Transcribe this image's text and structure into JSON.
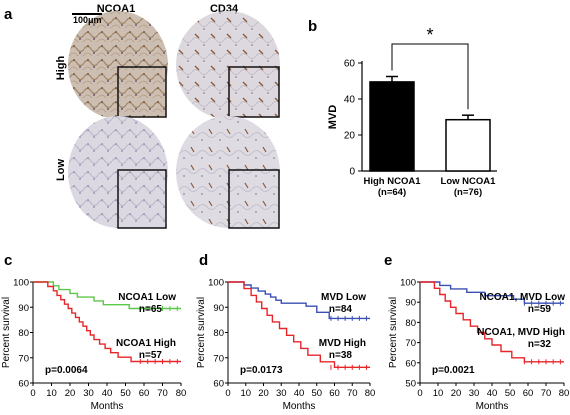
{
  "panels": {
    "a": "a",
    "b": "b",
    "c": "c",
    "d": "d",
    "e": "e"
  },
  "ihc": {
    "col_labels": [
      "NCOA1",
      "CD34"
    ],
    "row_labels": [
      "High",
      "Low"
    ],
    "scale_bar": "100μm"
  },
  "chart_data": [
    {
      "id": "b",
      "type": "bar",
      "categories": [
        "High NCOA1\n(n=64)",
        "Low NCOA1\n(n=76)"
      ],
      "values": [
        49.5,
        28.5
      ],
      "errors": [
        3,
        2.5
      ],
      "bar_colors": [
        "#000000",
        "#ffffff"
      ],
      "ylabel": "MVD",
      "ylim": [
        0,
        60
      ],
      "yticks": [
        0,
        20,
        40,
        60
      ],
      "annotation": "*"
    },
    {
      "id": "c",
      "type": "line",
      "xlabel": "Months",
      "ylabel": "Percent survival",
      "xlim": [
        0,
        80
      ],
      "ylim": [
        60,
        100
      ],
      "xticks": [
        0,
        10,
        20,
        30,
        40,
        50,
        60,
        70,
        80
      ],
      "yticks": [
        60,
        70,
        80,
        90,
        100
      ],
      "pvalue": "p=0.0064",
      "series": [
        {
          "name": "NCOA1 Low",
          "n": "n=65",
          "color": "#5cc84a",
          "steps": [
            [
              0,
              100
            ],
            [
              11,
              100
            ],
            [
              11,
              98.5
            ],
            [
              14,
              98.5
            ],
            [
              14,
              97
            ],
            [
              20,
              97
            ],
            [
              20,
              95.5
            ],
            [
              24,
              95.5
            ],
            [
              24,
              94
            ],
            [
              33,
              94
            ],
            [
              33,
              92.5
            ],
            [
              38,
              92.5
            ],
            [
              38,
              91
            ],
            [
              52,
              91
            ],
            [
              52,
              89.5
            ],
            [
              80,
              89.5
            ]
          ]
        },
        {
          "name": "NCOA1 High",
          "n": "n=57",
          "color": "#e8262a",
          "steps": [
            [
              0,
              100
            ],
            [
              8,
              100
            ],
            [
              8,
              98.2
            ],
            [
              11,
              98.2
            ],
            [
              11,
              96.5
            ],
            [
              13,
              96.5
            ],
            [
              13,
              94.7
            ],
            [
              15,
              94.7
            ],
            [
              15,
              93
            ],
            [
              17,
              93
            ],
            [
              17,
              91.2
            ],
            [
              19,
              91.2
            ],
            [
              19,
              89.5
            ],
            [
              21,
              89.5
            ],
            [
              21,
              87.7
            ],
            [
              23,
              87.7
            ],
            [
              23,
              86
            ],
            [
              25,
              86
            ],
            [
              25,
              84.2
            ],
            [
              27,
              84.2
            ],
            [
              27,
              82.5
            ],
            [
              29,
              82.5
            ],
            [
              29,
              80.7
            ],
            [
              31,
              80.7
            ],
            [
              31,
              79
            ],
            [
              33,
              79
            ],
            [
              33,
              77.2
            ],
            [
              36,
              77.2
            ],
            [
              36,
              75.4
            ],
            [
              39,
              75.4
            ],
            [
              39,
              73.7
            ],
            [
              42,
              73.7
            ],
            [
              42,
              72
            ],
            [
              46,
              72
            ],
            [
              46,
              70.2
            ],
            [
              53,
              70.2
            ],
            [
              53,
              68.5
            ],
            [
              80,
              68.5
            ]
          ]
        }
      ]
    },
    {
      "id": "d",
      "type": "line",
      "xlabel": "Months",
      "ylabel": "Percent survival",
      "xlim": [
        0,
        80
      ],
      "ylim": [
        60,
        100
      ],
      "xticks": [
        0,
        10,
        20,
        30,
        40,
        50,
        60,
        70,
        80
      ],
      "yticks": [
        60,
        70,
        80,
        90,
        100
      ],
      "pvalue": "p=0.0173",
      "series": [
        {
          "name": "MVD Low",
          "n": "n=84",
          "color": "#3a4fb3",
          "steps": [
            [
              0,
              100
            ],
            [
              9,
              100
            ],
            [
              9,
              98.8
            ],
            [
              13,
              98.8
            ],
            [
              13,
              97.6
            ],
            [
              17,
              97.6
            ],
            [
              17,
              96.4
            ],
            [
              21,
              96.4
            ],
            [
              21,
              95.2
            ],
            [
              24,
              95.2
            ],
            [
              24,
              94
            ],
            [
              27,
              94
            ],
            [
              27,
              92.8
            ],
            [
              30,
              92.8
            ],
            [
              30,
              91.6
            ],
            [
              44,
              91.6
            ],
            [
              44,
              90.4
            ],
            [
              50,
              90.4
            ],
            [
              50,
              88
            ],
            [
              57,
              88
            ],
            [
              57,
              85.6
            ],
            [
              80,
              85.6
            ]
          ]
        },
        {
          "name": "MVD High",
          "n": "n=38",
          "color": "#e8262a",
          "steps": [
            [
              0,
              100
            ],
            [
              9,
              100
            ],
            [
              9,
              97.4
            ],
            [
              13,
              97.4
            ],
            [
              13,
              94.7
            ],
            [
              16,
              94.7
            ],
            [
              16,
              92.1
            ],
            [
              19,
              92.1
            ],
            [
              19,
              89.5
            ],
            [
              22,
              89.5
            ],
            [
              22,
              86.8
            ],
            [
              25,
              86.8
            ],
            [
              25,
              84.2
            ],
            [
              29,
              84.2
            ],
            [
              29,
              81.6
            ],
            [
              33,
              81.6
            ],
            [
              33,
              78.9
            ],
            [
              37,
              78.9
            ],
            [
              37,
              76.3
            ],
            [
              41,
              76.3
            ],
            [
              41,
              73.7
            ],
            [
              45,
              73.7
            ],
            [
              45,
              71
            ],
            [
              52,
              71
            ],
            [
              52,
              68.4
            ],
            [
              60,
              68.4
            ],
            [
              60,
              66.2
            ],
            [
              80,
              66.2
            ]
          ]
        }
      ]
    },
    {
      "id": "e",
      "type": "line",
      "xlabel": "Months",
      "ylabel": "Percent survival",
      "xlim": [
        0,
        80
      ],
      "ylim": [
        50,
        100
      ],
      "xticks": [
        0,
        10,
        20,
        30,
        40,
        50,
        60,
        70,
        80
      ],
      "yticks": [
        50,
        60,
        70,
        80,
        90,
        100
      ],
      "pvalue": "p=0.0021",
      "series": [
        {
          "name": "NCOA1, MVD Low",
          "n": "n=59",
          "color": "#3a4fb3",
          "steps": [
            [
              0,
              100
            ],
            [
              11,
              100
            ],
            [
              11,
              98.3
            ],
            [
              17,
              98.3
            ],
            [
              17,
              96.6
            ],
            [
              26,
              96.6
            ],
            [
              26,
              94.9
            ],
            [
              36,
              94.9
            ],
            [
              36,
              93.2
            ],
            [
              52,
              93.2
            ],
            [
              52,
              91.5
            ],
            [
              58,
              91.5
            ],
            [
              58,
              89.5
            ],
            [
              80,
              89.5
            ]
          ]
        },
        {
          "name": "NCOA1, MVD High",
          "n": "n=32",
          "color": "#e8262a",
          "steps": [
            [
              0,
              100
            ],
            [
              8,
              100
            ],
            [
              8,
              96.9
            ],
            [
              11,
              96.9
            ],
            [
              11,
              93.8
            ],
            [
              14,
              93.8
            ],
            [
              14,
              90.6
            ],
            [
              17,
              90.6
            ],
            [
              17,
              87.5
            ],
            [
              20,
              87.5
            ],
            [
              20,
              84.4
            ],
            [
              24,
              84.4
            ],
            [
              24,
              81.3
            ],
            [
              28,
              81.3
            ],
            [
              28,
              78.1
            ],
            [
              32,
              78.1
            ],
            [
              32,
              75
            ],
            [
              36,
              75
            ],
            [
              36,
              71.9
            ],
            [
              40,
              71.9
            ],
            [
              40,
              68.8
            ],
            [
              45,
              68.8
            ],
            [
              45,
              65.6
            ],
            [
              51,
              65.6
            ],
            [
              51,
              62.5
            ],
            [
              58,
              62.5
            ],
            [
              58,
              60.5
            ],
            [
              80,
              60.5
            ]
          ]
        }
      ]
    }
  ]
}
